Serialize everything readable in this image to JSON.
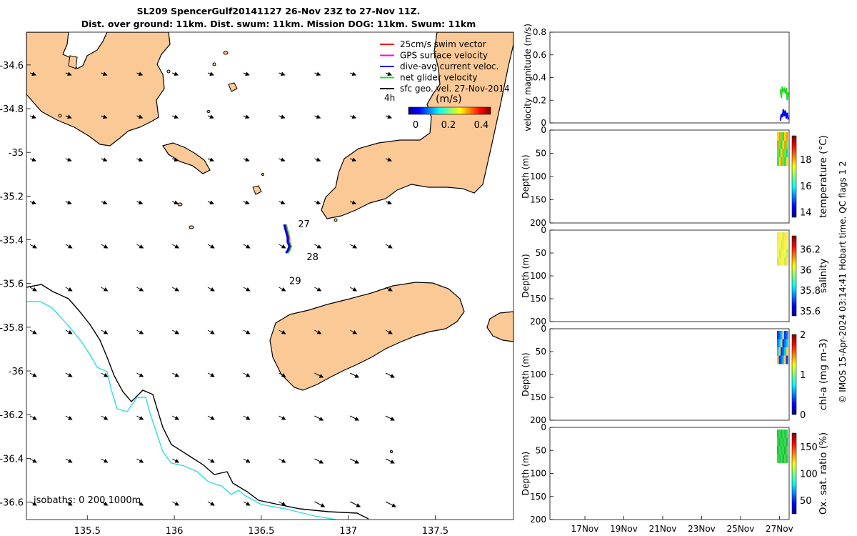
{
  "title_line1": "SL209 SpencerGulf20141127 26-Nov 23Z to 27-Nov 11Z.",
  "title_line2": "Dist. over ground: 11km. Dist. swum: 11km. Mission DOG: 11km. Swum: 11km",
  "copyright": "© IMOS 15-Apr-2024 03:14:41 Hobart time. QC flags 1  2",
  "colors": {
    "land": "#fbc996",
    "isobath_200": "#000000",
    "isobath_1000": "#33dddd",
    "swim": "#ff0000",
    "gps": "#ff00ff",
    "dive": "#0000ff",
    "net": "#22dd22"
  },
  "chart_data": [
    {
      "type": "map",
      "x_ticks": [
        "135.5",
        "136",
        "136.5",
        "137",
        "137.5"
      ],
      "y_ticks": [
        "-34.6",
        "-34.8",
        "-35",
        "-35.2",
        "-35.4",
        "-35.6",
        "-35.8",
        "-36",
        "-36.2",
        "-36.4",
        "-36.6"
      ],
      "xlim": [
        135.15,
        137.95
      ],
      "ylim": [
        -36.68,
        -34.45
      ],
      "legend": [
        {
          "label": "25cm/s swim vector",
          "color": "#ff0000"
        },
        {
          "label": "GPS surface velocity",
          "color": "#ff00ff"
        },
        {
          "label": "dive-avg current veloc.",
          "color": "#0000ff"
        },
        {
          "label": "net glider velocity",
          "color": "#22dd22"
        },
        {
          "label": "sfc geo. vel. 27-Nov-2014",
          "color": "#000000"
        }
      ],
      "legend_extra": "4h",
      "colorbar": {
        "label": "(m/s)",
        "ticks": [
          "0",
          "0.2",
          "0.4"
        ],
        "range": [
          0,
          0.5
        ]
      },
      "track_labels": [
        {
          "text": "27",
          "lon": 136.67,
          "lat": -35.33
        },
        {
          "text": "28",
          "lon": 136.72,
          "lat": -35.48
        },
        {
          "text": "29",
          "lon": 136.62,
          "lat": -35.59
        }
      ],
      "track": {
        "lon": [
          136.64,
          136.65,
          136.66,
          136.66,
          136.67,
          136.66,
          136.65
        ],
        "lat": [
          -35.33,
          -35.36,
          -35.39,
          -35.41,
          -35.43,
          -35.45,
          -35.46
        ]
      },
      "isobaths_label": "isobaths: 0   200  1000m"
    },
    {
      "type": "line",
      "ylabel": "velocity magnitude (m/s)",
      "ylim": [
        0,
        0.8
      ],
      "y_ticks": [
        "0",
        "0.2",
        "0.4",
        "0.6",
        "0.8"
      ],
      "series": [
        {
          "color": "#22dd22",
          "x": [
            27.05,
            27.1,
            27.15,
            27.2,
            27.25,
            27.3,
            27.35,
            27.4,
            27.45
          ],
          "y": [
            0.3,
            0.22,
            0.32,
            0.28,
            0.3,
            0.26,
            0.31,
            0.2,
            0.27
          ]
        },
        {
          "color": "#0000ff",
          "x": [
            27.05,
            27.1,
            27.15,
            27.2,
            27.25,
            27.3,
            27.35,
            27.4,
            27.45
          ],
          "y": [
            0.02,
            0.08,
            0.05,
            0.12,
            0.06,
            0.11,
            0.04,
            0.09,
            0.03
          ]
        }
      ]
    },
    {
      "type": "heatmap",
      "ylabel": "Depth (m)",
      "y_ticks": [
        "0",
        "50",
        "100",
        "150",
        "200"
      ],
      "clabel": "temperature (°C)",
      "cticks": [
        "14",
        "16",
        "18"
      ],
      "crange": [
        13.6,
        19.8
      ]
    },
    {
      "type": "heatmap",
      "ylabel": "Depth (m)",
      "y_ticks": [
        "0",
        "50",
        "100",
        "150",
        "200"
      ],
      "clabel": "salinity",
      "cticks": [
        "35.6",
        "35.8",
        "36",
        "36.2"
      ],
      "crange": [
        35.55,
        36.33
      ]
    },
    {
      "type": "heatmap",
      "ylabel": "Depth (m)",
      "y_ticks": [
        "0",
        "50",
        "100",
        "150",
        "200"
      ],
      "clabel": "chl-a (mg m-3)",
      "cticks": [
        "0",
        "1",
        "2"
      ],
      "crange": [
        0,
        2
      ]
    },
    {
      "type": "heatmap",
      "ylabel": "Depth (m)",
      "y_ticks": [
        "0",
        "50",
        "100",
        "150",
        "200"
      ],
      "clabel": "Ox. sat. ratio (%)",
      "cticks": [
        "50",
        "100",
        "150"
      ],
      "crange": [
        25,
        175
      ]
    },
    {
      "type": "axis",
      "x_ticks": [
        "17Nov",
        "19Nov",
        "21Nov",
        "23Nov",
        "25Nov",
        "27Nov"
      ]
    }
  ]
}
